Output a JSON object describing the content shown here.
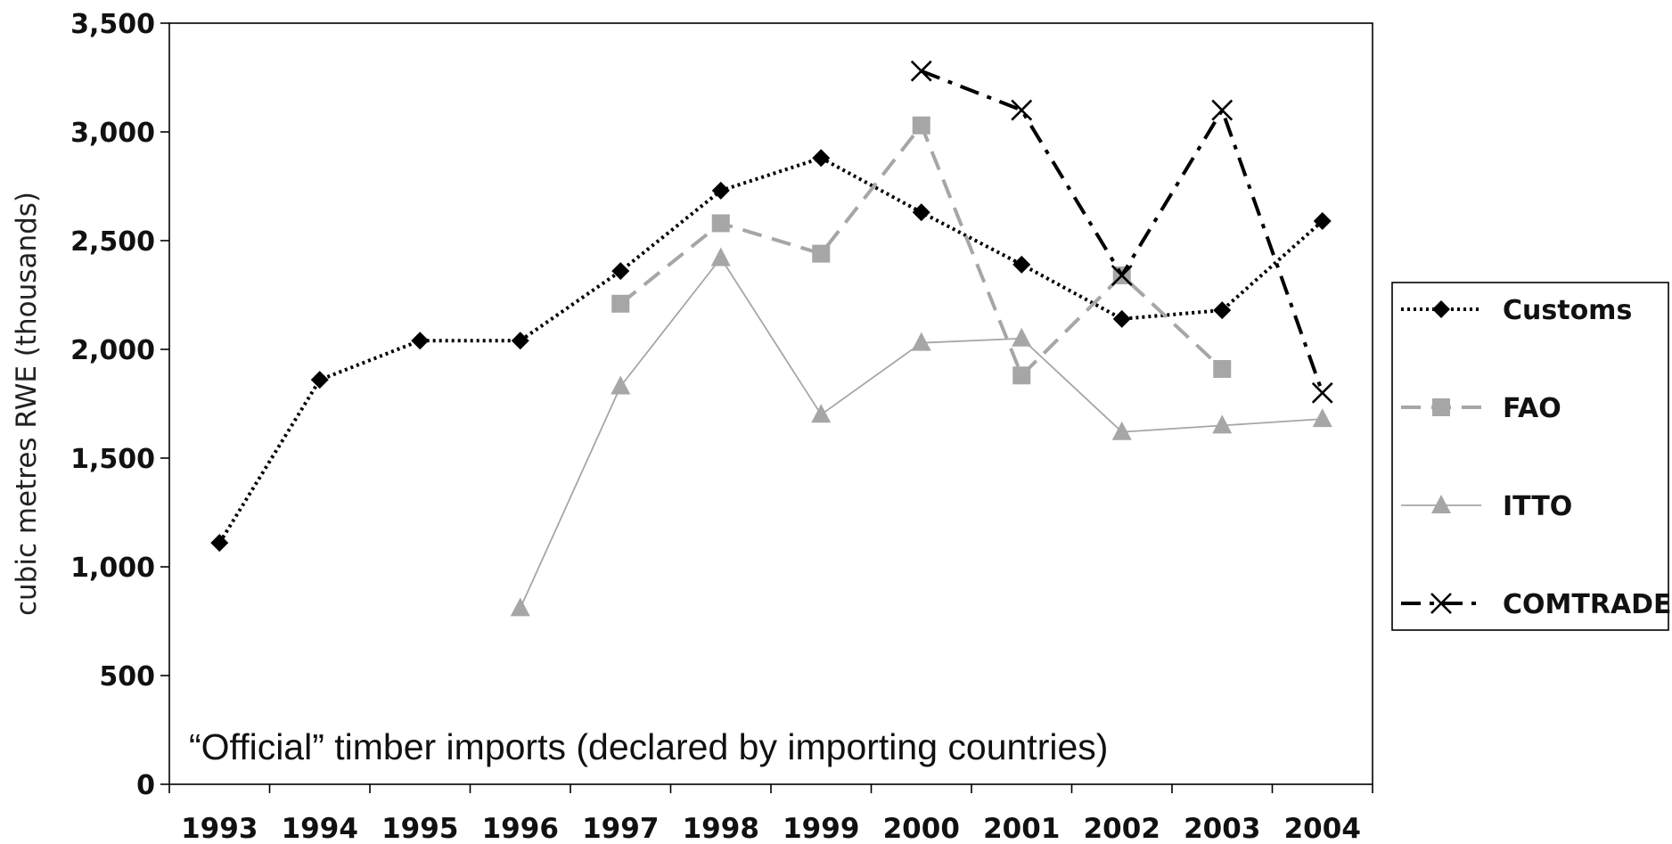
{
  "chart_data": {
    "type": "line",
    "title": "",
    "xlabel": "",
    "ylabel": "cubic metres RWE (thousands)",
    "annotation": "“Official” timber imports (declared by importing countries)",
    "categories": [
      "1993",
      "1994",
      "1995",
      "1996",
      "1997",
      "1998",
      "1999",
      "2000",
      "2001",
      "2002",
      "2003",
      "2004"
    ],
    "ylim": [
      0,
      3500
    ],
    "yticks": [
      0,
      500,
      1000,
      1500,
      2000,
      2500,
      3000,
      3500
    ],
    "ytick_labels": [
      "0",
      "500",
      "1,000",
      "1,500",
      "2,000",
      "2,500",
      "3,000",
      "3,500"
    ],
    "grid": false,
    "legend_position": "right",
    "series": [
      {
        "name": "Customs",
        "color": "#000000",
        "marker": "diamond",
        "dash": "dotted",
        "values": [
          1110,
          1860,
          2040,
          2040,
          2360,
          2730,
          2880,
          2630,
          2390,
          2140,
          2180,
          2590
        ]
      },
      {
        "name": "FAO",
        "color": "#a6a6a6",
        "marker": "square",
        "dash": "dashed",
        "values": [
          null,
          null,
          null,
          null,
          2210,
          2580,
          2440,
          3030,
          1880,
          2340,
          1910,
          null
        ]
      },
      {
        "name": "ITTO",
        "color": "#a6a6a6",
        "marker": "triangle",
        "dash": "solid",
        "values": [
          null,
          null,
          null,
          810,
          1830,
          2420,
          1700,
          2030,
          2050,
          1620,
          1650,
          1680
        ]
      },
      {
        "name": "COMTRADE",
        "color": "#000000",
        "marker": "x",
        "dash": "dashdot",
        "values": [
          null,
          null,
          null,
          null,
          null,
          null,
          null,
          3280,
          3100,
          2340,
          3100,
          1800
        ]
      }
    ]
  }
}
